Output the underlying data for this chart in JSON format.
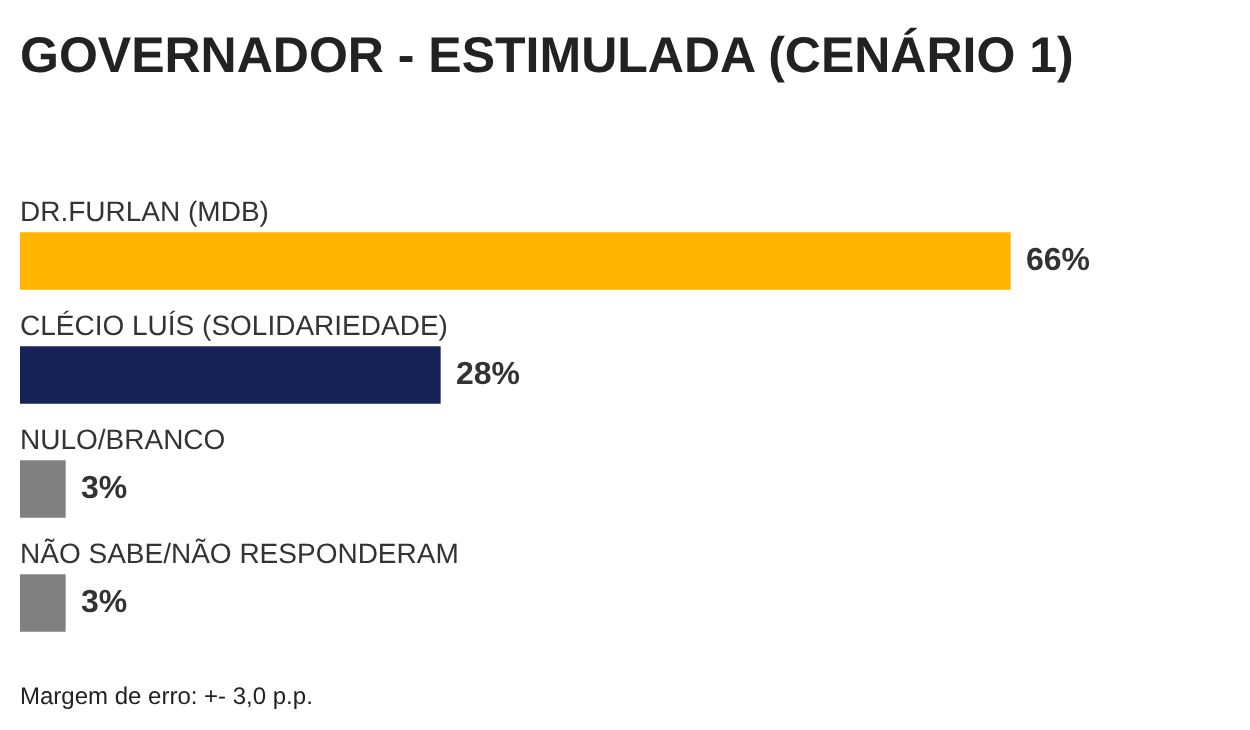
{
  "chart_data": {
    "type": "bar",
    "orientation": "horizontal",
    "title": "GOVERNADOR - ESTIMULADA (CENÁRIO 1)",
    "categories": [
      "DR.FURLAN (MDB)",
      "CLÉCIO LUÍS (SOLIDARIEDADE)",
      "NULO/BRANCO",
      "NÃO SABE/NÃO RESPONDERAM"
    ],
    "values": [
      66,
      28,
      3,
      3
    ],
    "value_labels": [
      "66%",
      "28%",
      "3%",
      "3%"
    ],
    "colors": [
      "#ffb400",
      "#172356",
      "#808080",
      "#808080"
    ],
    "annotations": [
      "Margem de erro: +- 3,0 p.p."
    ]
  }
}
